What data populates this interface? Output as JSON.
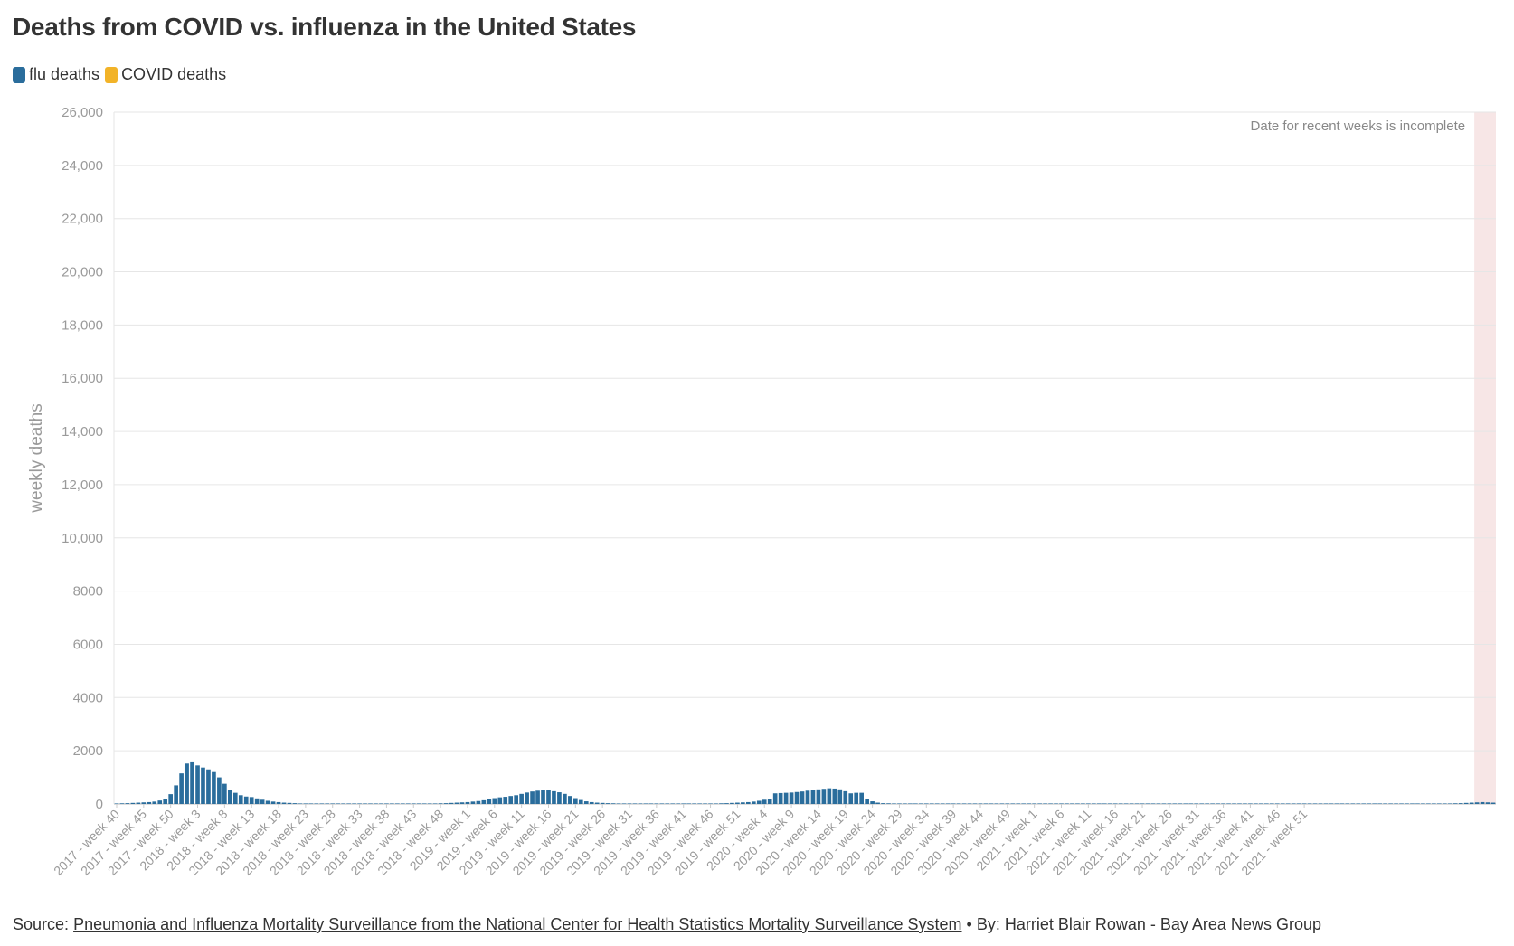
{
  "title": "Deaths from COVID vs. influenza in the United States",
  "legend": {
    "flu_label": "flu deaths",
    "covid_label": "COVID deaths",
    "flu_color": "#2a6d9c",
    "covid_color": "#f2b328"
  },
  "annotation": "Date for recent weeks is incomplete",
  "footer": {
    "source_prefix": "Source:",
    "source_link": "Pneumonia and Influenza Mortality Surveillance from the National Center for Health Statistics Mortality Surveillance System",
    "byline": "• By: Harriet Blair Rowan - Bay Area News Group"
  },
  "chart_data": {
    "type": "bar",
    "stacked": true,
    "ylabel": "weekly deaths",
    "ylim": [
      0,
      26000
    ],
    "yticks": [
      0,
      2000,
      4000,
      6000,
      8000,
      10000,
      12000,
      14000,
      16000,
      18000,
      20000,
      22000,
      24000,
      26000
    ],
    "ytick_labels": [
      "0",
      "2000",
      "4000",
      "6000",
      "8000",
      "10,000",
      "12,000",
      "14,000",
      "16,000",
      "18,000",
      "20,000",
      "22,000",
      "24,000",
      "26,000"
    ],
    "grid": true,
    "legend_position": "top-left",
    "start": {
      "year": 2017,
      "week": 40
    },
    "incomplete_weeks": 4,
    "xtick_labels": [
      "2017 - week 40",
      "2017 - week 45",
      "2017 - week 50",
      "2018 - week 3",
      "2018 - week 8",
      "2018 - week 13",
      "2018 - week 18",
      "2018 - week 23",
      "2018 - week 28",
      "2018 - week 33",
      "2018 - week 38",
      "2018 - week 43",
      "2018 - week 48",
      "2019 - week 1",
      "2019 - week 6",
      "2019 - week 11",
      "2019 - week 16",
      "2019 - week 21",
      "2019 - week 26",
      "2019 - week 31",
      "2019 - week 36",
      "2019 - week 41",
      "2019 - week 46",
      "2019 - week 51",
      "2020 - week 4",
      "2020 - week 9",
      "2020 - week 14",
      "2020 - week 19",
      "2020 - week 24",
      "2020 - week 29",
      "2020 - week 34",
      "2020 - week 39",
      "2020 - week 44",
      "2020 - week 49",
      "2021 - week 1",
      "2021 - week 6",
      "2021 - week 11",
      "2021 - week 16",
      "2021 - week 21",
      "2021 - week 26",
      "2021 - week 31",
      "2021 - week 36",
      "2021 - week 41",
      "2021 - week 46",
      "2021 - week 51"
    ],
    "series": [
      {
        "name": "flu deaths",
        "values": [
          20,
          25,
          30,
          40,
          50,
          60,
          70,
          90,
          130,
          200,
          370,
          700,
          1150,
          1520,
          1600,
          1450,
          1370,
          1300,
          1200,
          1000,
          760,
          530,
          420,
          330,
          280,
          260,
          210,
          160,
          120,
          90,
          70,
          50,
          40,
          30,
          20,
          20,
          20,
          20,
          20,
          20,
          20,
          20,
          20,
          20,
          20,
          20,
          20,
          20,
          20,
          20,
          20,
          20,
          20,
          20,
          20,
          20,
          20,
          20,
          20,
          20,
          25,
          30,
          40,
          50,
          60,
          70,
          90,
          110,
          140,
          180,
          220,
          250,
          270,
          300,
          330,
          380,
          430,
          470,
          500,
          520,
          510,
          480,
          440,
          380,
          300,
          220,
          150,
          100,
          70,
          50,
          40,
          30,
          25,
          20,
          20,
          20,
          20,
          20,
          20,
          20,
          20,
          20,
          20,
          20,
          20,
          20,
          20,
          20,
          20,
          20,
          20,
          20,
          25,
          30,
          40,
          50,
          60,
          70,
          90,
          120,
          160,
          200,
          400,
          410,
          420,
          430,
          450,
          470,
          500,
          520,
          550,
          570,
          590,
          580,
          550,
          480,
          400,
          420,
          420,
          200,
          100,
          50,
          30,
          25,
          20,
          20,
          20,
          20,
          20,
          20,
          20,
          20,
          20,
          20,
          20,
          20,
          20,
          20,
          20,
          20,
          20,
          20,
          20,
          20,
          20,
          20,
          20,
          20,
          20,
          20,
          20,
          20,
          20,
          20,
          20,
          20,
          20,
          20,
          20,
          20,
          20,
          20,
          20,
          20,
          20,
          20,
          20,
          20,
          20,
          20,
          20,
          20,
          20,
          20,
          20,
          20,
          20,
          20,
          20,
          20,
          20,
          20,
          20,
          20,
          20,
          20,
          20,
          20,
          20,
          20,
          20,
          20,
          20,
          20,
          20,
          20,
          20,
          20,
          20,
          20,
          20,
          20,
          20,
          20,
          20,
          20,
          20,
          20,
          20,
          20,
          20,
          20,
          20,
          20,
          20,
          20,
          20,
          20,
          20,
          20,
          20,
          20,
          20,
          20,
          20,
          20,
          20,
          20,
          25,
          30,
          40,
          50,
          60,
          70,
          60,
          50
        ]
      },
      {
        "name": "COVID deaths",
        "values": [
          0,
          0,
          0,
          0,
          0,
          0,
          0,
          0,
          0,
          0,
          0,
          0,
          0,
          0,
          0,
          0,
          0,
          0,
          0,
          0,
          0,
          0,
          0,
          0,
          0,
          0,
          0,
          0,
          0,
          0,
          0,
          0,
          0,
          0,
          0,
          0,
          0,
          0,
          0,
          0,
          0,
          0,
          0,
          0,
          0,
          0,
          0,
          0,
          0,
          0,
          0,
          0,
          0,
          0,
          0,
          0,
          0,
          0,
          0,
          0,
          0,
          0,
          0,
          0,
          0,
          0,
          0,
          0,
          0,
          0,
          0,
          0,
          0,
          0,
          0,
          0,
          0,
          0,
          0,
          0,
          0,
          0,
          0,
          0,
          0,
          0,
          0,
          0,
          0,
          0,
          0,
          0,
          0,
          0,
          0,
          0,
          0,
          0,
          0,
          0,
          0,
          0,
          0,
          0,
          0,
          0,
          0,
          0,
          0,
          0,
          0,
          0,
          0,
          0,
          0,
          0,
          0,
          0,
          0,
          0,
          0,
          0,
          0,
          0,
          0,
          0,
          0,
          0,
          0,
          0,
          0,
          0,
          0,
          0,
          0,
          0,
          0,
          0,
          0,
          0,
          0,
          0,
          0,
          0,
          0,
          0,
          0,
          0,
          0,
          0,
          0,
          0,
          0,
          0,
          0,
          0,
          0,
          0,
          0,
          0,
          0,
          0,
          0,
          0,
          0,
          0,
          0,
          0,
          0,
          0,
          0,
          0,
          0,
          0,
          0,
          0,
          0,
          0,
          0,
          0,
          0,
          0,
          0,
          0,
          0,
          0,
          0,
          0,
          0,
          0,
          0,
          0,
          0,
          0,
          0,
          0,
          0,
          0,
          0,
          0,
          0,
          0,
          0,
          0,
          0,
          0,
          0,
          0,
          0,
          0,
          0,
          0,
          0,
          0,
          0,
          0,
          0,
          0,
          0,
          0,
          0,
          0,
          0,
          0,
          0,
          0,
          0,
          0,
          0,
          0,
          0,
          0,
          0,
          0,
          0,
          0,
          0,
          0,
          0,
          0,
          0,
          0,
          0,
          0,
          0,
          0,
          0,
          0,
          0,
          0,
          0,
          0,
          0,
          0,
          0,
          0,
          0,
          0,
          0,
          0
        ]
      }
    ]
  }
}
